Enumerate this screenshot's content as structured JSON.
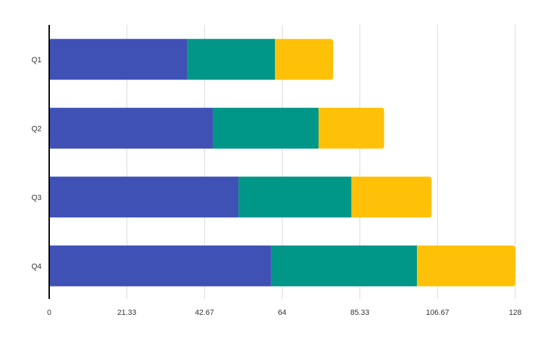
{
  "chart_data": {
    "type": "bar",
    "orientation": "horizontal",
    "stacked": true,
    "categories": [
      "Q1",
      "Q2",
      "Q3",
      "Q4"
    ],
    "series": [
      {
        "values": [
          38,
          45,
          52,
          61
        ],
        "color": "#3f51b5"
      },
      {
        "values": [
          24,
          29,
          31,
          40
        ],
        "color": "#009688"
      },
      {
        "values": [
          16,
          18,
          22,
          27
        ],
        "color": "#ffc107"
      }
    ],
    "xlim": [
      0,
      128
    ],
    "x_ticks": [
      "0",
      "21.33",
      "42.67",
      "64",
      "85.33",
      "106.67",
      "128"
    ],
    "grid": "vertical",
    "legend": "none",
    "title": "",
    "xlabel": "",
    "ylabel": ""
  }
}
